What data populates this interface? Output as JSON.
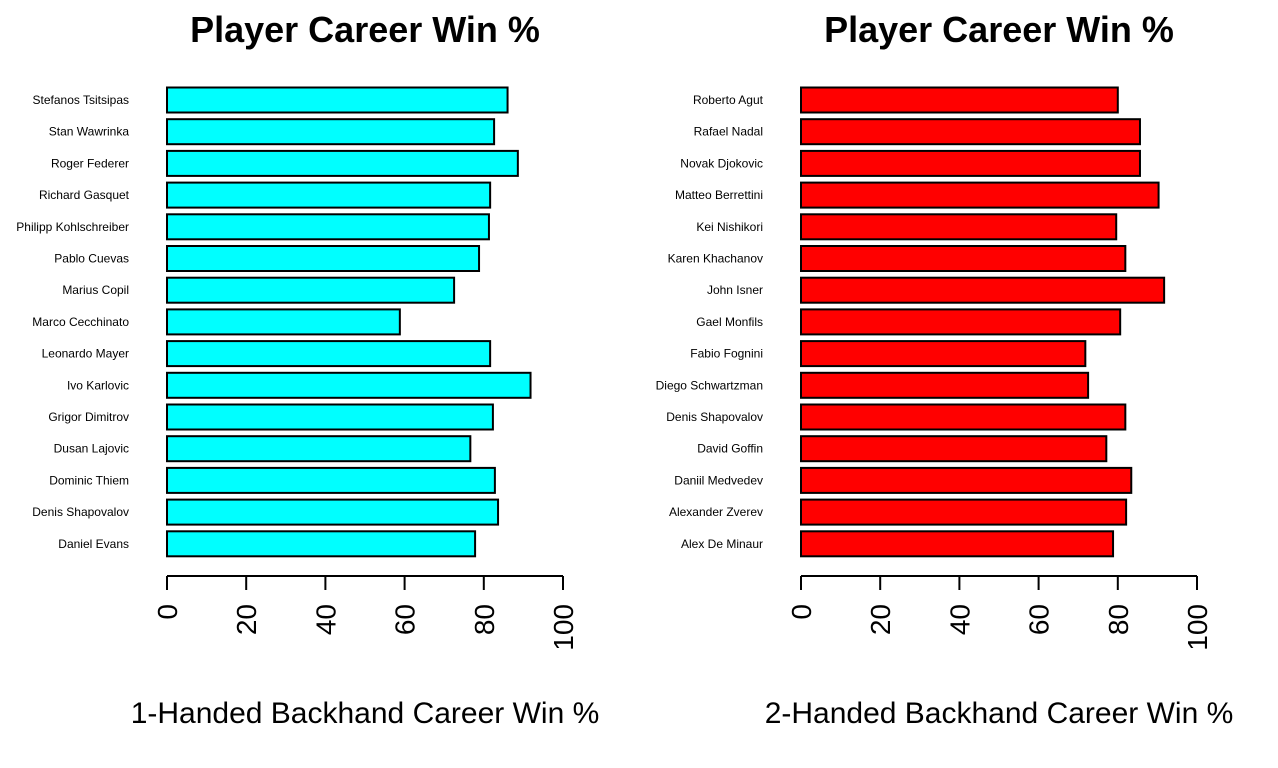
{
  "chart_data": [
    {
      "type": "bar",
      "orientation": "horizontal",
      "title": "Player Career Win %",
      "xlabel": "1-Handed Backhand Career Win %",
      "ylabel": "",
      "xlim": [
        0,
        100
      ],
      "ticks": [
        "0",
        "20",
        "40",
        "60",
        "80",
        "100"
      ],
      "bar_color": "#00FFFF",
      "categories": [
        "Stefanos Tsitsipas",
        "Stan Wawrinka",
        "Roger Federer",
        "Richard Gasquet",
        "Philipp Kohlschreiber",
        "Pablo Cuevas",
        "Marius Copil",
        "Marco Cecchinato",
        "Leonardo Mayer",
        "Ivo Karlovic",
        "Grigor Dimitrov",
        "Dusan Lajovic",
        "Dominic Thiem",
        "Denis Shapovalov",
        "Daniel Evans"
      ],
      "values": [
        86,
        82.6,
        88.6,
        81.6,
        81.3,
        78.8,
        72.5,
        58.8,
        81.6,
        91.8,
        82.3,
        76.6,
        82.8,
        83.6,
        77.8
      ]
    },
    {
      "type": "bar",
      "orientation": "horizontal",
      "title": "Player Career Win %",
      "xlabel": "2-Handed Backhand Career Win %",
      "ylabel": "",
      "xlim": [
        0,
        100
      ],
      "ticks": [
        "0",
        "20",
        "40",
        "60",
        "80",
        "100"
      ],
      "bar_color": "#FF0000",
      "categories": [
        "Roberto Agut",
        "Rafael Nadal",
        "Novak Djokovic",
        "Matteo Berrettini",
        "Kei Nishikori",
        "Karen Khachanov",
        "John Isner",
        "Gael Monfils",
        "Fabio Fognini",
        "Diego Schwartzman",
        "Denis Shapovalov",
        "David Goffin",
        "Daniil Medvedev",
        "Alexander Zverev",
        "Alex De Minaur"
      ],
      "values": [
        80,
        85.6,
        85.6,
        90.3,
        79.6,
        81.9,
        91.7,
        80.6,
        71.8,
        72.5,
        81.9,
        77.1,
        83.4,
        82.1,
        78.8
      ]
    }
  ]
}
